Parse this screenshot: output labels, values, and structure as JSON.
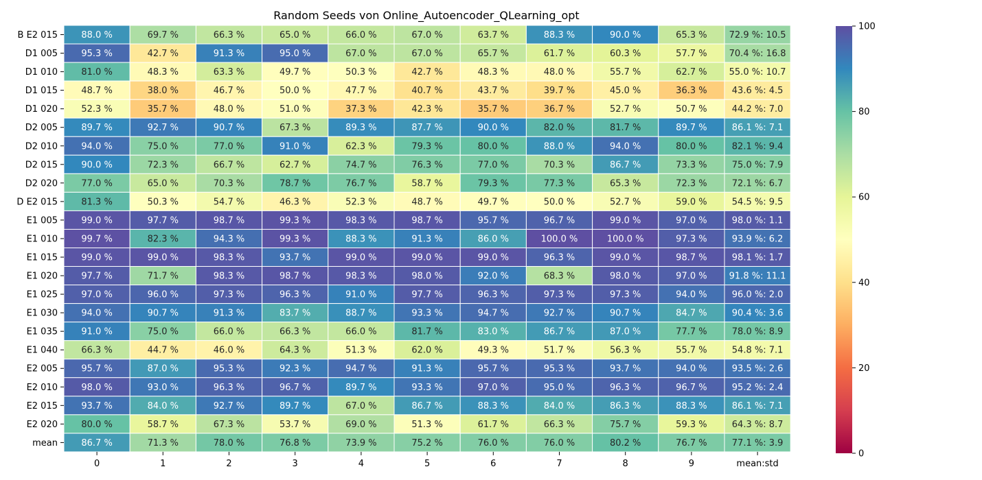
{
  "chart_data": {
    "type": "heatmap",
    "title": "Random Seeds von Online_Autoencoder_QLearning_opt",
    "xlabel": "",
    "ylabel": "",
    "colormap": "Spectral",
    "vmin": 0,
    "vmax": 100,
    "colorbar_ticks": [
      0,
      20,
      40,
      60,
      80,
      100
    ],
    "columns": [
      "0",
      "1",
      "2",
      "3",
      "4",
      "5",
      "6",
      "7",
      "8",
      "9",
      "mean:std"
    ],
    "rows": [
      {
        "label": "B E2 015",
        "values": [
          88.0,
          69.7,
          66.3,
          65.0,
          66.0,
          67.0,
          63.7,
          88.3,
          90.0,
          65.3
        ],
        "mean": 72.9,
        "std": 10.5
      },
      {
        "label": "D1 005",
        "values": [
          95.3,
          42.7,
          91.3,
          95.0,
          67.0,
          67.0,
          65.7,
          61.7,
          60.3,
          57.7
        ],
        "mean": 70.4,
        "std": 16.8
      },
      {
        "label": "D1 010",
        "values": [
          81.0,
          48.3,
          63.3,
          49.7,
          50.3,
          42.7,
          48.3,
          48.0,
          55.7,
          62.7
        ],
        "mean": 55.0,
        "std": 10.7
      },
      {
        "label": "D1 015",
        "values": [
          48.7,
          38.0,
          46.7,
          50.0,
          47.7,
          40.7,
          43.7,
          39.7,
          45.0,
          36.3
        ],
        "mean": 43.6,
        "std": 4.5
      },
      {
        "label": "D1 020",
        "values": [
          52.3,
          35.7,
          48.0,
          51.0,
          37.3,
          42.3,
          35.7,
          36.7,
          52.7,
          50.7
        ],
        "mean": 44.2,
        "std": 7.0
      },
      {
        "label": "D2 005",
        "values": [
          89.7,
          92.7,
          90.7,
          67.3,
          89.3,
          87.7,
          90.0,
          82.0,
          81.7,
          89.7
        ],
        "mean": 86.1,
        "std": 7.1
      },
      {
        "label": "D2 010",
        "values": [
          94.0,
          75.0,
          77.0,
          91.0,
          62.3,
          79.3,
          80.0,
          88.0,
          94.0,
          80.0
        ],
        "mean": 82.1,
        "std": 9.4
      },
      {
        "label": "D2 015",
        "values": [
          90.0,
          72.3,
          66.7,
          62.7,
          74.7,
          76.3,
          77.0,
          70.3,
          86.7,
          73.3
        ],
        "mean": 75.0,
        "std": 7.9
      },
      {
        "label": "D2 020",
        "values": [
          77.0,
          65.0,
          70.3,
          78.7,
          76.7,
          58.7,
          79.3,
          77.3,
          65.3,
          72.3
        ],
        "mean": 72.1,
        "std": 6.7
      },
      {
        "label": "D E2 015",
        "values": [
          81.3,
          50.3,
          54.7,
          46.3,
          52.3,
          48.7,
          49.7,
          50.0,
          52.7,
          59.0
        ],
        "mean": 54.5,
        "std": 9.5
      },
      {
        "label": "E1 005",
        "values": [
          99.0,
          97.7,
          98.7,
          99.3,
          98.3,
          98.7,
          95.7,
          96.7,
          99.0,
          97.0
        ],
        "mean": 98.0,
        "std": 1.1
      },
      {
        "label": "E1 010",
        "values": [
          99.7,
          82.3,
          94.3,
          99.3,
          88.3,
          91.3,
          86.0,
          100.0,
          100.0,
          97.3
        ],
        "mean": 93.9,
        "std": 6.2
      },
      {
        "label": "E1 015",
        "values": [
          99.0,
          99.0,
          98.3,
          93.7,
          99.0,
          99.0,
          99.0,
          96.3,
          99.0,
          98.7
        ],
        "mean": 98.1,
        "std": 1.7
      },
      {
        "label": "E1 020",
        "values": [
          97.7,
          71.7,
          98.3,
          98.7,
          98.3,
          98.0,
          92.0,
          68.3,
          98.0,
          97.0
        ],
        "mean": 91.8,
        "std": 11.1
      },
      {
        "label": "E1 025",
        "values": [
          97.0,
          96.0,
          97.3,
          96.3,
          91.0,
          97.7,
          96.3,
          97.3,
          97.3,
          94.0
        ],
        "mean": 96.0,
        "std": 2.0
      },
      {
        "label": "E1 030",
        "values": [
          94.0,
          90.7,
          91.3,
          83.7,
          88.7,
          93.3,
          94.7,
          92.7,
          90.7,
          84.7
        ],
        "mean": 90.4,
        "std": 3.6
      },
      {
        "label": "E1 035",
        "values": [
          91.0,
          75.0,
          66.0,
          66.3,
          66.0,
          81.7,
          83.0,
          86.7,
          87.0,
          77.7
        ],
        "mean": 78.0,
        "std": 8.9
      },
      {
        "label": "E1 040",
        "values": [
          66.3,
          44.7,
          46.0,
          64.3,
          51.3,
          62.0,
          49.3,
          51.7,
          56.3,
          55.7
        ],
        "mean": 54.8,
        "std": 7.1
      },
      {
        "label": "E2 005",
        "values": [
          95.7,
          87.0,
          95.3,
          92.3,
          94.7,
          91.3,
          95.7,
          95.3,
          93.7,
          94.0
        ],
        "mean": 93.5,
        "std": 2.6
      },
      {
        "label": "E2 010",
        "values": [
          98.0,
          93.0,
          96.3,
          96.7,
          89.7,
          93.3,
          97.0,
          95.0,
          96.3,
          96.7
        ],
        "mean": 95.2,
        "std": 2.4
      },
      {
        "label": "E2 015",
        "values": [
          93.7,
          84.0,
          92.7,
          89.7,
          67.0,
          86.7,
          88.3,
          84.0,
          86.3,
          88.3
        ],
        "mean": 86.1,
        "std": 7.1
      },
      {
        "label": "E2 020",
        "values": [
          80.0,
          58.7,
          67.3,
          53.7,
          69.0,
          51.3,
          61.7,
          66.3,
          75.7,
          59.3
        ],
        "mean": 64.3,
        "std": 8.7
      },
      {
        "label": "mean",
        "values": [
          86.7,
          71.3,
          78.0,
          76.8,
          73.9,
          75.2,
          76.0,
          76.0,
          80.2,
          76.7
        ],
        "mean": 77.1,
        "std": 3.9
      }
    ]
  }
}
